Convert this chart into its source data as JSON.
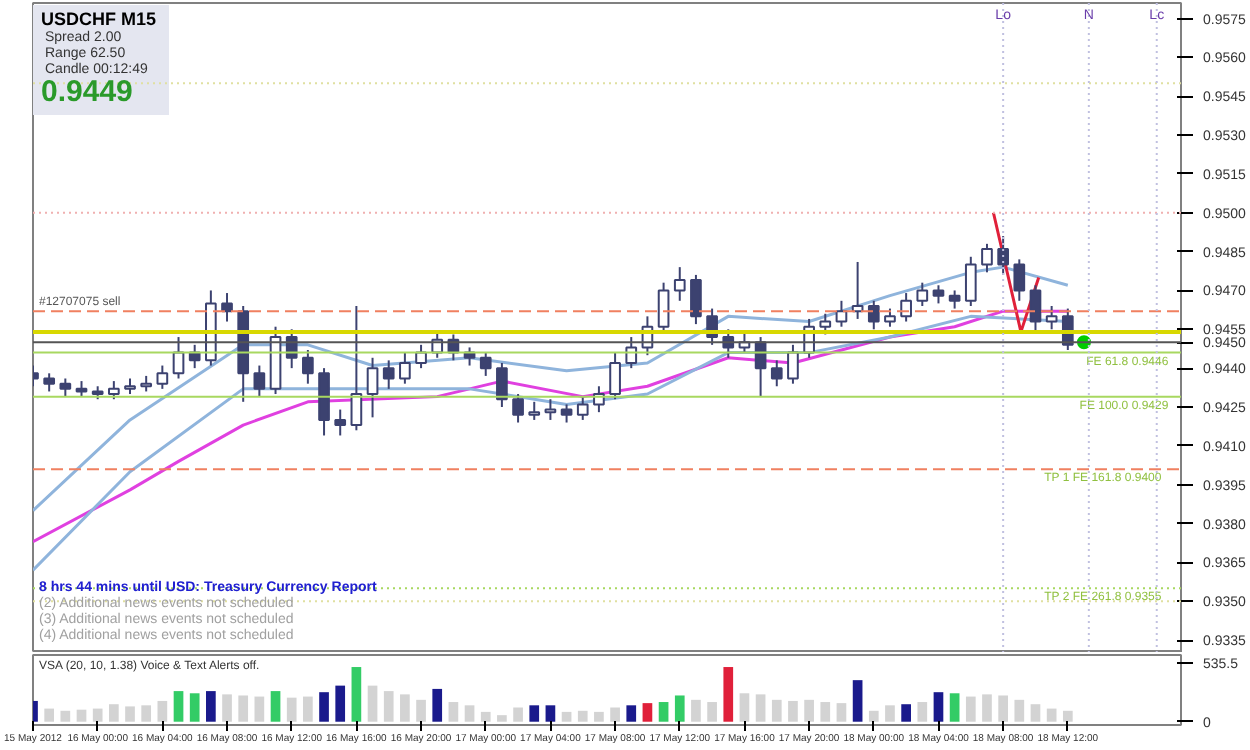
{
  "chart_data": [
    {
      "type": "candlestick",
      "color": "#3c4270",
      "x": [
        "2012-05-15T20:00",
        "2012-05-15T21:00",
        "2012-05-15T22:00",
        "2012-05-15T23:00",
        "2012-05-16T00:00",
        "2012-05-16T01:00",
        "2012-05-16T02:00",
        "2012-05-16T03:00",
        "2012-05-16T04:00",
        "2012-05-16T05:00",
        "2012-05-16T06:00",
        "2012-05-16T07:00",
        "2012-05-16T08:00",
        "2012-05-16T09:00",
        "2012-05-16T10:00",
        "2012-05-16T11:00",
        "2012-05-16T12:00",
        "2012-05-16T13:00",
        "2012-05-16T14:00",
        "2012-05-16T15:00",
        "2012-05-16T16:00",
        "2012-05-16T17:00",
        "2012-05-16T18:00",
        "2012-05-16T19:00",
        "2012-05-16T20:00",
        "2012-05-16T21:00",
        "2012-05-16T22:00",
        "2012-05-16T23:00",
        "2012-05-17T00:00",
        "2012-05-17T01:00",
        "2012-05-17T02:00",
        "2012-05-17T03:00",
        "2012-05-17T04:00",
        "2012-05-17T05:00",
        "2012-05-17T06:00",
        "2012-05-17T07:00",
        "2012-05-17T08:00",
        "2012-05-17T09:00",
        "2012-05-17T10:00",
        "2012-05-17T11:00",
        "2012-05-17T12:00",
        "2012-05-17T13:00",
        "2012-05-17T14:00",
        "2012-05-17T15:00",
        "2012-05-17T16:00",
        "2012-05-17T17:00",
        "2012-05-17T18:00",
        "2012-05-17T19:00",
        "2012-05-17T20:00",
        "2012-05-17T21:00",
        "2012-05-17T22:00",
        "2012-05-17T23:00",
        "2012-05-18T00:00",
        "2012-05-18T01:00",
        "2012-05-18T02:00",
        "2012-05-18T03:00",
        "2012-05-18T04:00",
        "2012-05-18T05:00",
        "2012-05-18T06:00",
        "2012-05-18T07:00",
        "2012-05-18T08:00",
        "2012-05-18T09:00",
        "2012-05-18T10:00",
        "2012-05-18T11:00",
        "2012-05-18T12:00"
      ],
      "ohlc": [
        [
          0.9438,
          0.9441,
          0.9433,
          0.9436
        ],
        [
          0.9436,
          0.9438,
          0.9431,
          0.9434
        ],
        [
          0.9434,
          0.9436,
          0.9429,
          0.9432
        ],
        [
          0.9432,
          0.9435,
          0.9429,
          0.9431
        ],
        [
          0.9431,
          0.9433,
          0.9428,
          0.943
        ],
        [
          0.943,
          0.9435,
          0.9428,
          0.9432
        ],
        [
          0.9432,
          0.9436,
          0.943,
          0.9433
        ],
        [
          0.9433,
          0.9437,
          0.9431,
          0.9434
        ],
        [
          0.9434,
          0.9441,
          0.9432,
          0.9438
        ],
        [
          0.9438,
          0.9452,
          0.9436,
          0.9446
        ],
        [
          0.9446,
          0.9449,
          0.944,
          0.9443
        ],
        [
          0.9443,
          0.947,
          0.9441,
          0.9465
        ],
        [
          0.9465,
          0.9469,
          0.9458,
          0.9462
        ],
        [
          0.9462,
          0.9464,
          0.9427,
          0.9438
        ],
        [
          0.9438,
          0.9441,
          0.9429,
          0.9432
        ],
        [
          0.9432,
          0.9456,
          0.943,
          0.9452
        ],
        [
          0.9452,
          0.9455,
          0.944,
          0.9444
        ],
        [
          0.9444,
          0.9447,
          0.9434,
          0.9438
        ],
        [
          0.9438,
          0.944,
          0.9414,
          0.942
        ],
        [
          0.942,
          0.9424,
          0.9414,
          0.9418
        ],
        [
          0.9418,
          0.9464,
          0.9416,
          0.943
        ],
        [
          0.943,
          0.9444,
          0.9421,
          0.944
        ],
        [
          0.944,
          0.9443,
          0.9432,
          0.9436
        ],
        [
          0.9436,
          0.9446,
          0.9434,
          0.9442
        ],
        [
          0.9442,
          0.9449,
          0.944,
          0.9446
        ],
        [
          0.9446,
          0.9454,
          0.9444,
          0.9451
        ],
        [
          0.9451,
          0.9453,
          0.9443,
          0.9446
        ],
        [
          0.9446,
          0.9448,
          0.9441,
          0.9444
        ],
        [
          0.9444,
          0.9446,
          0.9437,
          0.944
        ],
        [
          0.944,
          0.9442,
          0.9425,
          0.9428
        ],
        [
          0.9428,
          0.943,
          0.9419,
          0.9422
        ],
        [
          0.9422,
          0.9427,
          0.942,
          0.9423
        ],
        [
          0.9423,
          0.9428,
          0.942,
          0.9424
        ],
        [
          0.9424,
          0.9426,
          0.9419,
          0.9422
        ],
        [
          0.9422,
          0.9429,
          0.942,
          0.9426
        ],
        [
          0.9426,
          0.9433,
          0.9423,
          0.943
        ],
        [
          0.943,
          0.9446,
          0.9428,
          0.9442
        ],
        [
          0.9442,
          0.9452,
          0.944,
          0.9448
        ],
        [
          0.9448,
          0.946,
          0.9445,
          0.9456
        ],
        [
          0.9456,
          0.9473,
          0.9454,
          0.947
        ],
        [
          0.947,
          0.9479,
          0.9466,
          0.9474
        ],
        [
          0.9474,
          0.9476,
          0.9457,
          0.946
        ],
        [
          0.946,
          0.9463,
          0.9449,
          0.9452
        ],
        [
          0.9452,
          0.9455,
          0.9444,
          0.9448
        ],
        [
          0.9448,
          0.9454,
          0.9446,
          0.945
        ],
        [
          0.945,
          0.9452,
          0.9429,
          0.944
        ],
        [
          0.944,
          0.9443,
          0.9433,
          0.9436
        ],
        [
          0.9436,
          0.9449,
          0.9434,
          0.9446
        ],
        [
          0.9446,
          0.9459,
          0.9444,
          0.9456
        ],
        [
          0.9456,
          0.9461,
          0.9453,
          0.9458
        ],
        [
          0.9458,
          0.9466,
          0.9456,
          0.9462
        ],
        [
          0.9462,
          0.9481,
          0.9459,
          0.9464
        ],
        [
          0.9464,
          0.9466,
          0.9455,
          0.9458
        ],
        [
          0.9458,
          0.9463,
          0.9456,
          0.946
        ],
        [
          0.946,
          0.9469,
          0.9458,
          0.9466
        ],
        [
          0.9466,
          0.9473,
          0.9464,
          0.947
        ],
        [
          0.947,
          0.9472,
          0.9465,
          0.9468
        ],
        [
          0.9468,
          0.947,
          0.9463,
          0.9466
        ],
        [
          0.9466,
          0.9483,
          0.9464,
          0.948
        ],
        [
          0.948,
          0.9488,
          0.9477,
          0.9486
        ],
        [
          0.9486,
          0.9491,
          0.9476,
          0.948
        ],
        [
          0.948,
          0.9482,
          0.9466,
          0.947
        ],
        [
          0.947,
          0.9472,
          0.9454,
          0.9458
        ],
        [
          0.9458,
          0.9464,
          0.9455,
          0.946
        ],
        [
          0.946,
          0.9463,
          0.9447,
          0.9449
        ]
      ],
      "series": [
        {
          "type": "line",
          "color": "#e040e0",
          "x": [
            "2012-05-15T20:00",
            "2012-05-16T02:00",
            "2012-05-16T05:00",
            "2012-05-16T09:00",
            "2012-05-16T13:00",
            "2012-05-16T21:00",
            "2012-05-17T01:00",
            "2012-05-17T06:00",
            "2012-05-17T10:00",
            "2012-05-17T15:00",
            "2012-05-17T19:00",
            "2012-05-18T01:00",
            "2012-05-18T05:00",
            "2012-05-18T08:00",
            "2012-05-18T12:00"
          ],
          "values": [
            0.9373,
            0.9393,
            0.9404,
            0.9418,
            0.9427,
            0.9429,
            0.9435,
            0.9429,
            0.9433,
            0.9444,
            0.9442,
            0.9452,
            0.9456,
            0.9462,
            0.9462
          ]
        },
        {
          "type": "line",
          "color": "#8fb4dc",
          "x": [
            "2012-05-15T20:00",
            "2012-05-16T02:00",
            "2012-05-16T09:00",
            "2012-05-16T13:00",
            "2012-05-16T17:00",
            "2012-05-16T23:00",
            "2012-05-17T05:00",
            "2012-05-17T10:00",
            "2012-05-17T15:00",
            "2012-05-17T20:00",
            "2012-05-18T01:00",
            "2012-05-18T06:00",
            "2012-05-18T08:00",
            "2012-05-18T12:00"
          ],
          "values": [
            0.9385,
            0.942,
            0.9449,
            0.9449,
            0.9441,
            0.9444,
            0.9439,
            0.9442,
            0.946,
            0.9458,
            0.9468,
            0.9477,
            0.9479,
            0.9472
          ]
        },
        {
          "type": "line",
          "color": "#8fb4dc",
          "x": [
            "2012-05-15T20:00",
            "2012-05-16T02:00",
            "2012-05-16T09:00",
            "2012-05-16T23:00",
            "2012-05-17T05:00",
            "2012-05-17T10:00",
            "2012-05-17T15:00",
            "2012-05-17T20:00",
            "2012-05-18T01:00",
            "2012-05-18T06:00",
            "2012-05-18T12:00"
          ],
          "values": [
            0.9362,
            0.94,
            0.9432,
            0.9432,
            0.9426,
            0.943,
            0.9446,
            0.9446,
            0.9452,
            0.946,
            0.9458
          ]
        },
        {
          "type": "line",
          "color": "#e0203a",
          "x": [
            "2012-05-18T07:24",
            "2012-05-18T09:06",
            "2012-05-18T10:12"
          ],
          "values": [
            0.95,
            0.9454,
            0.9475
          ]
        },
        {
          "type": "scatter",
          "color": "#00cc00",
          "marker": "circle",
          "x": [
            "2012-05-18T13:00"
          ],
          "values": [
            0.945
          ]
        }
      ],
      "xlim": [
        "2012-05-15T20:00",
        "2012-05-18T19:00"
      ],
      "ylim": [
        0.933,
        0.9581
      ],
      "yticks": [
        0.9335,
        {
          "value": 0.935,
          "label": "0.9350"
        },
        0.9365,
        {
          "value": 0.938,
          "label": "0.9380"
        },
        0.9395,
        {
          "value": 0.941,
          "label": "0.9410"
        },
        0.9425,
        {
          "value": 0.944,
          "label": "0.9440"
        },
        {
          "value": 0.945,
          "label": "0.9450"
        },
        0.9455,
        {
          "value": 0.947,
          "label": "0.9470"
        },
        0.9485,
        {
          "value": 0.95,
          "label": "0.9500"
        },
        0.9515,
        {
          "value": 0.953,
          "label": "0.9530"
        },
        0.9545,
        {
          "value": 0.956,
          "label": "0.9560"
        },
        0.9575
      ],
      "tick_labels": "y",
      "grid": false,
      "ref_lines": [
        {
          "axis": "y",
          "value": 0.9462,
          "label": "#12707075 sell",
          "color": "#f08060",
          "line_style": "dashed"
        },
        {
          "axis": "y",
          "value": 0.9454,
          "color": "#d8d800",
          "line_style": "solid"
        },
        {
          "axis": "y",
          "value": 0.945,
          "color": "#555555",
          "line_style": "solid"
        },
        {
          "axis": "y",
          "value": 0.9446,
          "label": "FE 61.8   0.9446",
          "color": "#a8d860",
          "line_style": "solid"
        },
        {
          "axis": "y",
          "value": 0.9429,
          "label": "FE 100.0   0.9429",
          "color": "#a8d860",
          "line_style": "solid"
        },
        {
          "axis": "y",
          "value": 0.9401,
          "label": "TP 1   FE 161.8   0.9400",
          "color": "#f08060",
          "line_style": "dashed"
        },
        {
          "axis": "y",
          "value": 0.9355,
          "label": "TP 2   FE 261.8   0.9355",
          "color": "#a8d860",
          "line_style": "dotted"
        },
        {
          "axis": "y",
          "value": 0.955,
          "color": "#e0e0a0",
          "line_style": "dotted"
        },
        {
          "axis": "y",
          "value": 0.95,
          "color": "#f0b0b0",
          "line_style": "dotted"
        },
        {
          "axis": "y",
          "value": 0.935,
          "color": "#e0e0a0",
          "line_style": "dotted"
        },
        {
          "axis": "x",
          "value": "2012-05-18T08:00",
          "label": "Lo",
          "color": "#c0c0e0",
          "line_style": "dotted"
        },
        {
          "axis": "x",
          "value": "2012-05-18T13:18",
          "label": "N",
          "color": "#c0c0e0",
          "line_style": "dotted"
        },
        {
          "axis": "x",
          "value": "2012-05-18T17:30",
          "label": "Lc",
          "color": "#c0c0e0",
          "line_style": "dotted"
        }
      ],
      "annotations": [
        "USDCHF   M15",
        "Spread  2.00",
        "Range  62.50",
        "Candle  00:12:49",
        "0.9449",
        "8 hrs 44 mins until USD: Treasury Currency Report",
        "(2)  Additional news events not scheduled",
        "(3)  Additional news events not scheduled",
        "(4)  Additional news events not scheduled"
      ]
    },
    {
      "type": "bar",
      "x": [
        "2012-05-15T20:00",
        "2012-05-15T21:00",
        "2012-05-15T22:00",
        "2012-05-15T23:00",
        "2012-05-16T00:00",
        "2012-05-16T01:00",
        "2012-05-16T02:00",
        "2012-05-16T03:00",
        "2012-05-16T04:00",
        "2012-05-16T05:00",
        "2012-05-16T06:00",
        "2012-05-16T07:00",
        "2012-05-16T08:00",
        "2012-05-16T09:00",
        "2012-05-16T10:00",
        "2012-05-16T11:00",
        "2012-05-16T12:00",
        "2012-05-16T13:00",
        "2012-05-16T14:00",
        "2012-05-16T15:00",
        "2012-05-16T16:00",
        "2012-05-16T17:00",
        "2012-05-16T18:00",
        "2012-05-16T19:00",
        "2012-05-16T20:00",
        "2012-05-16T21:00",
        "2012-05-16T22:00",
        "2012-05-16T23:00",
        "2012-05-17T00:00",
        "2012-05-17T01:00",
        "2012-05-17T02:00",
        "2012-05-17T03:00",
        "2012-05-17T04:00",
        "2012-05-17T05:00",
        "2012-05-17T06:00",
        "2012-05-17T07:00",
        "2012-05-17T08:00",
        "2012-05-17T09:00",
        "2012-05-17T10:00",
        "2012-05-17T11:00",
        "2012-05-17T12:00",
        "2012-05-17T13:00",
        "2012-05-17T14:00",
        "2012-05-17T15:00",
        "2012-05-17T16:00",
        "2012-05-17T17:00",
        "2012-05-17T18:00",
        "2012-05-17T19:00",
        "2012-05-17T20:00",
        "2012-05-17T21:00",
        "2012-05-17T22:00",
        "2012-05-17T23:00",
        "2012-05-18T00:00",
        "2012-05-18T01:00",
        "2012-05-18T02:00",
        "2012-05-18T03:00",
        "2012-05-18T04:00",
        "2012-05-18T05:00",
        "2012-05-18T06:00",
        "2012-05-18T07:00",
        "2012-05-18T08:00",
        "2012-05-18T09:00",
        "2012-05-18T10:00",
        "2012-05-18T11:00",
        "2012-05-18T12:00"
      ],
      "values": [
        190,
        120,
        100,
        110,
        120,
        160,
        140,
        150,
        190,
        280,
        260,
        280,
        250,
        240,
        230,
        280,
        220,
        230,
        270,
        330,
        500,
        330,
        280,
        250,
        200,
        300,
        180,
        150,
        90,
        60,
        130,
        150,
        150,
        90,
        100,
        90,
        130,
        150,
        170,
        180,
        240,
        200,
        180,
        500,
        260,
        250,
        200,
        190,
        200,
        180,
        170,
        380,
        100,
        150,
        160,
        180,
        270,
        260,
        230,
        250,
        240,
        200,
        160,
        120,
        100
      ],
      "colors": [
        "#1a1a8c",
        "#d3d3d3",
        "#d3d3d3",
        "#d3d3d3",
        "#d3d3d3",
        "#d3d3d3",
        "#d3d3d3",
        "#d3d3d3",
        "#d3d3d3",
        "#33cc66",
        "#33cc66",
        "#1a1a8c",
        "#d3d3d3",
        "#d3d3d3",
        "#d3d3d3",
        "#33cc66",
        "#d3d3d3",
        "#d3d3d3",
        "#1a1a8c",
        "#1a1a8c",
        "#33cc66",
        "#d3d3d3",
        "#d3d3d3",
        "#d3d3d3",
        "#d3d3d3",
        "#1a1a8c",
        "#d3d3d3",
        "#d3d3d3",
        "#d3d3d3",
        "#d3d3d3",
        "#d3d3d3",
        "#1a1a8c",
        "#1a1a8c",
        "#d3d3d3",
        "#d3d3d3",
        "#d3d3d3",
        "#d3d3d3",
        "#1a1a8c",
        "#e0203a",
        "#33cc66",
        "#33cc66",
        "#d3d3d3",
        "#d3d3d3",
        "#e0203a",
        "#d3d3d3",
        "#d3d3d3",
        "#d3d3d3",
        "#d3d3d3",
        "#d3d3d3",
        "#d3d3d3",
        "#d3d3d3",
        "#1a1a8c",
        "#d3d3d3",
        "#d3d3d3",
        "#1a1a8c",
        "#d3d3d3",
        "#1a1a8c",
        "#33cc66",
        "#d3d3d3",
        "#d3d3d3",
        "#d3d3d3",
        "#d3d3d3",
        "#d3d3d3",
        "#d3d3d3",
        "#d3d3d3"
      ],
      "xlim": [
        "2012-05-15T20:00",
        "2012-05-18T19:00"
      ],
      "ylim": [
        -30,
        610
      ],
      "xticks": [
        {
          "value": "2012-05-15T20:00",
          "label": "15 May 2012"
        },
        {
          "value": "2012-05-16T00:00",
          "label": "16 May 00:00"
        },
        {
          "value": "2012-05-16T04:00",
          "label": "16 May 04:00"
        },
        {
          "value": "2012-05-16T08:00",
          "label": "16 May 08:00"
        },
        {
          "value": "2012-05-16T12:00",
          "label": "16 May 12:00"
        },
        {
          "value": "2012-05-16T16:00",
          "label": "16 May 16:00"
        },
        {
          "value": "2012-05-16T20:00",
          "label": "16 May 20:00"
        },
        {
          "value": "2012-05-17T00:00",
          "label": "17 May 00:00"
        },
        {
          "value": "2012-05-17T04:00",
          "label": "17 May 04:00"
        },
        {
          "value": "2012-05-17T08:00",
          "label": "17 May 08:00"
        },
        {
          "value": "2012-05-17T12:00",
          "label": "17 May 12:00"
        },
        {
          "value": "2012-05-17T16:00",
          "label": "17 May 16:00"
        },
        {
          "value": "2012-05-17T20:00",
          "label": "17 May 20:00"
        },
        {
          "value": "2012-05-18T00:00",
          "label": "18 May 00:00"
        },
        {
          "value": "2012-05-18T04:00",
          "label": "18 May 04:00"
        },
        {
          "value": "2012-05-18T08:00",
          "label": "18 May 08:00"
        },
        {
          "value": "2012-05-18T12:00",
          "label": "18 May 12:00"
        }
      ],
      "yticks": [
        0,
        535.5
      ],
      "grid": false,
      "annotations": [
        "VSA (20, 10, 1.38)   Voice & Text Alerts off."
      ]
    }
  ]
}
